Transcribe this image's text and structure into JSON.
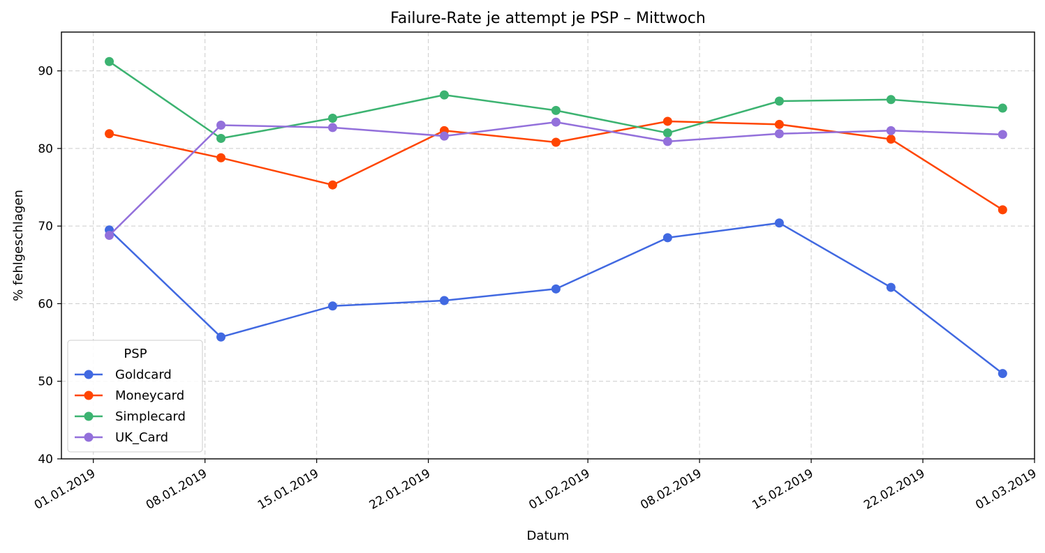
{
  "chart_data": {
    "type": "line",
    "title": "Failure-Rate je attempt je PSP – Mittwoch",
    "xlabel": "Datum",
    "ylabel": "% fehlgeschlagen",
    "xlim": [
      "2018-12-30",
      "2019-03-01"
    ],
    "ylim": [
      40,
      95
    ],
    "x_ticks": [
      "01.01.2019",
      "08.01.2019",
      "15.01.2019",
      "22.01.2019",
      "01.02.2019",
      "08.02.2019",
      "15.02.2019",
      "22.02.2019",
      "01.03.2019"
    ],
    "y_ticks": [
      40,
      50,
      60,
      70,
      80,
      90
    ],
    "grid": true,
    "legend": {
      "title": "PSP",
      "position": "lower-left"
    },
    "x": [
      "2019-01-02",
      "2019-01-09",
      "2019-01-16",
      "2019-01-23",
      "2019-01-30",
      "2019-02-06",
      "2019-02-13",
      "2019-02-20",
      "2019-02-27"
    ],
    "series": [
      {
        "name": "Goldcard",
        "color": "#4169e1",
        "values": [
          69.5,
          55.7,
          59.7,
          60.4,
          61.9,
          68.5,
          70.4,
          62.1,
          51.0
        ]
      },
      {
        "name": "Moneycard",
        "color": "#ff4500",
        "values": [
          81.9,
          78.8,
          75.3,
          82.3,
          80.8,
          83.5,
          83.1,
          81.2,
          72.1
        ]
      },
      {
        "name": "Simplecard",
        "color": "#3cb371",
        "values": [
          91.2,
          81.3,
          83.9,
          86.9,
          84.9,
          82.0,
          86.1,
          86.3,
          85.2
        ]
      },
      {
        "name": "UK_Card",
        "color": "#9370db",
        "values": [
          68.8,
          83.0,
          82.7,
          81.6,
          83.4,
          80.9,
          81.9,
          82.3,
          81.8
        ]
      }
    ]
  }
}
